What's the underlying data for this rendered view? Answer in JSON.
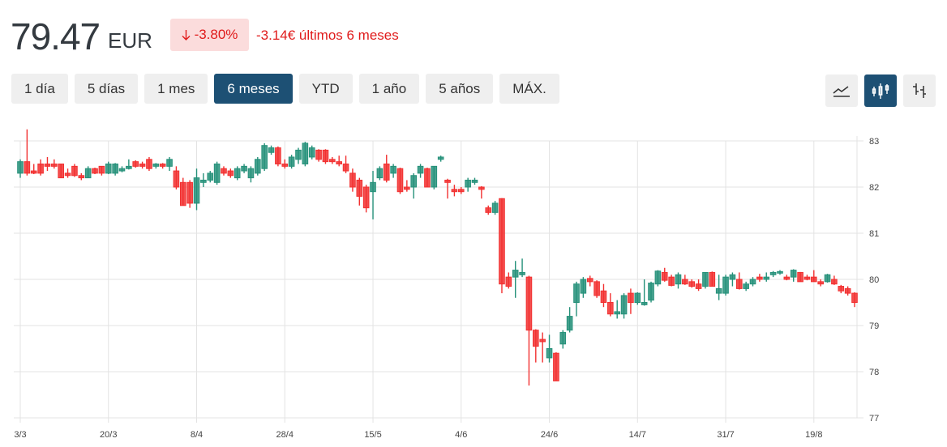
{
  "header": {
    "price": "79.47",
    "currency": "EUR",
    "change_pct": "-3.80%",
    "change_abs": "-3.14€ últimos 6 meses",
    "down_color": "#e01b1b"
  },
  "ranges": [
    {
      "label": "1 día",
      "active": false
    },
    {
      "label": "5 días",
      "active": false
    },
    {
      "label": "1 mes",
      "active": false
    },
    {
      "label": "6 meses",
      "active": true
    },
    {
      "label": "YTD",
      "active": false
    },
    {
      "label": "1 año",
      "active": false
    },
    {
      "label": "5 años",
      "active": false
    },
    {
      "label": "MÁX.",
      "active": false
    }
  ],
  "chart_types": [
    {
      "icon": "line-chart-icon",
      "active": false
    },
    {
      "icon": "candlestick-icon",
      "active": true
    },
    {
      "icon": "ohlc-bars-icon",
      "active": false
    }
  ],
  "chart_data": {
    "type": "candlestick",
    "ylim": [
      77,
      83
    ],
    "yticks": [
      77,
      78,
      79,
      80,
      81,
      82,
      83
    ],
    "grid": true,
    "up_color": "#26917a",
    "down_color": "#f23030",
    "xticks": [
      {
        "label": "3/3",
        "index": 0
      },
      {
        "label": "20/3",
        "index": 13
      },
      {
        "label": "8/4",
        "index": 26
      },
      {
        "label": "28/4",
        "index": 39
      },
      {
        "label": "15/5",
        "index": 52
      },
      {
        "label": "4/6",
        "index": 65
      },
      {
        "label": "24/6",
        "index": 78
      },
      {
        "label": "14/7",
        "index": 91
      },
      {
        "label": "31/7",
        "index": 104
      },
      {
        "label": "19/8",
        "index": 117
      }
    ],
    "ohlc": [
      [
        82.3,
        82.6,
        82.2,
        82.55
      ],
      [
        82.55,
        83.25,
        82.25,
        82.3
      ],
      [
        82.35,
        82.5,
        82.28,
        82.3
      ],
      [
        82.5,
        82.6,
        82.25,
        82.3
      ],
      [
        82.5,
        82.65,
        82.35,
        82.45
      ],
      [
        82.5,
        82.6,
        82.4,
        82.45
      ],
      [
        82.5,
        82.5,
        82.2,
        82.2
      ],
      [
        82.3,
        82.4,
        82.2,
        82.25
      ],
      [
        82.45,
        82.5,
        82.22,
        82.25
      ],
      [
        82.25,
        82.3,
        82.15,
        82.2
      ],
      [
        82.2,
        82.45,
        82.2,
        82.4
      ],
      [
        82.4,
        82.42,
        82.28,
        82.3
      ],
      [
        82.45,
        82.45,
        82.25,
        82.3
      ],
      [
        82.3,
        82.55,
        82.28,
        82.5
      ],
      [
        82.3,
        82.52,
        82.25,
        82.5
      ],
      [
        82.35,
        82.45,
        82.32,
        82.4
      ],
      [
        82.4,
        82.6,
        82.38,
        82.45
      ],
      [
        82.55,
        82.58,
        82.42,
        82.45
      ],
      [
        82.5,
        82.55,
        82.4,
        82.45
      ],
      [
        82.6,
        82.65,
        82.35,
        82.4
      ],
      [
        82.45,
        82.52,
        82.4,
        82.5
      ],
      [
        82.5,
        82.52,
        82.4,
        82.45
      ],
      [
        82.45,
        82.65,
        82.35,
        82.6
      ],
      [
        82.35,
        82.45,
        81.95,
        82.0
      ],
      [
        82.1,
        82.2,
        81.6,
        81.6
      ],
      [
        82.1,
        82.15,
        81.55,
        81.65
      ],
      [
        81.65,
        82.4,
        81.5,
        82.2
      ],
      [
        82.1,
        82.3,
        82.0,
        82.15
      ],
      [
        82.15,
        82.35,
        82.1,
        82.3
      ],
      [
        82.1,
        82.55,
        82.05,
        82.5
      ],
      [
        82.4,
        82.45,
        82.25,
        82.3
      ],
      [
        82.35,
        82.4,
        82.2,
        82.25
      ],
      [
        82.2,
        82.45,
        82.15,
        82.4
      ],
      [
        82.35,
        82.5,
        82.3,
        82.45
      ],
      [
        82.2,
        82.45,
        82.1,
        82.4
      ],
      [
        82.3,
        82.65,
        82.25,
        82.6
      ],
      [
        82.4,
        82.95,
        82.35,
        82.9
      ],
      [
        82.75,
        82.9,
        82.7,
        82.85
      ],
      [
        82.85,
        82.88,
        82.45,
        82.5
      ],
      [
        82.5,
        82.6,
        82.4,
        82.45
      ],
      [
        82.45,
        82.7,
        82.4,
        82.65
      ],
      [
        82.6,
        82.85,
        82.5,
        82.8
      ],
      [
        82.5,
        82.98,
        82.45,
        82.95
      ],
      [
        82.65,
        82.9,
        82.6,
        82.85
      ],
      [
        82.8,
        82.82,
        82.55,
        82.6
      ],
      [
        82.8,
        82.82,
        82.5,
        82.55
      ],
      [
        82.6,
        82.65,
        82.5,
        82.55
      ],
      [
        82.55,
        82.68,
        82.45,
        82.5
      ],
      [
        82.5,
        82.68,
        82.3,
        82.35
      ],
      [
        82.3,
        82.4,
        81.9,
        82.0
      ],
      [
        82.15,
        82.2,
        81.6,
        81.8
      ],
      [
        82.0,
        82.05,
        81.45,
        81.55
      ],
      [
        81.9,
        82.35,
        81.3,
        82.1
      ],
      [
        82.2,
        82.45,
        82.15,
        82.4
      ],
      [
        82.5,
        82.7,
        82.1,
        82.15
      ],
      [
        82.3,
        82.5,
        82.2,
        82.45
      ],
      [
        82.4,
        82.42,
        81.85,
        81.9
      ],
      [
        82.0,
        82.15,
        81.9,
        81.95
      ],
      [
        82.0,
        82.3,
        81.75,
        82.25
      ],
      [
        82.3,
        82.5,
        82.2,
        82.45
      ],
      [
        82.4,
        82.42,
        82.0,
        82.0
      ],
      [
        82.0,
        82.45,
        81.95,
        82.45
      ],
      [
        82.6,
        82.68,
        82.55,
        82.65
      ],
      [
        82.15,
        82.18,
        81.75,
        82.1
      ],
      [
        81.95,
        82.05,
        81.8,
        81.9
      ],
      [
        81.95,
        82.0,
        81.85,
        81.9
      ],
      [
        82.0,
        82.2,
        81.9,
        82.15
      ],
      [
        82.1,
        82.2,
        82.05,
        82.15
      ],
      [
        82.0,
        82.02,
        81.75,
        81.95
      ],
      [
        81.55,
        81.6,
        81.4,
        81.45
      ],
      [
        81.45,
        81.7,
        81.4,
        81.65
      ],
      [
        81.75,
        81.76,
        79.7,
        79.9
      ],
      [
        80.05,
        80.15,
        79.8,
        79.85
      ],
      [
        80.05,
        80.4,
        79.6,
        80.2
      ],
      [
        80.1,
        80.45,
        80.05,
        80.15
      ],
      [
        80.05,
        80.08,
        77.7,
        78.9
      ],
      [
        78.9,
        78.92,
        78.2,
        78.55
      ],
      [
        78.7,
        78.85,
        78.2,
        78.65
      ],
      [
        78.3,
        78.8,
        78.2,
        78.5
      ],
      [
        78.4,
        78.42,
        77.8,
        77.8
      ],
      [
        78.6,
        78.9,
        78.5,
        78.85
      ],
      [
        78.9,
        79.4,
        78.85,
        79.2
      ],
      [
        79.5,
        79.95,
        79.2,
        79.9
      ],
      [
        79.7,
        80.05,
        79.6,
        80.0
      ],
      [
        80.02,
        80.08,
        79.85,
        79.95
      ],
      [
        79.95,
        79.98,
        79.6,
        79.65
      ],
      [
        79.75,
        79.9,
        79.4,
        79.5
      ],
      [
        79.5,
        79.7,
        79.2,
        79.25
      ],
      [
        79.25,
        79.55,
        79.15,
        79.3
      ],
      [
        79.25,
        79.7,
        79.15,
        79.65
      ],
      [
        79.7,
        79.8,
        79.25,
        79.5
      ],
      [
        79.5,
        79.72,
        79.45,
        79.7
      ],
      [
        79.45,
        80.0,
        79.43,
        79.5
      ],
      [
        79.55,
        79.95,
        79.5,
        79.92
      ],
      [
        79.9,
        80.2,
        79.85,
        80.18
      ],
      [
        80.15,
        80.25,
        79.95,
        79.98
      ],
      [
        80.05,
        80.1,
        79.85,
        79.87
      ],
      [
        79.9,
        80.15,
        79.8,
        80.1
      ],
      [
        80.0,
        80.1,
        79.88,
        79.9
      ],
      [
        79.95,
        80.0,
        79.82,
        79.85
      ],
      [
        79.9,
        80.0,
        79.75,
        79.8
      ],
      [
        79.85,
        80.15,
        79.8,
        80.15
      ],
      [
        80.15,
        80.17,
        79.85,
        79.85
      ],
      [
        79.7,
        80.1,
        79.55,
        79.8
      ],
      [
        79.7,
        80.1,
        79.65,
        80.05
      ],
      [
        80.0,
        80.15,
        79.85,
        80.1
      ],
      [
        80.0,
        80.15,
        79.78,
        79.8
      ],
      [
        79.8,
        79.95,
        79.75,
        79.9
      ],
      [
        79.9,
        80.05,
        79.85,
        80.0
      ],
      [
        80.05,
        80.12,
        79.95,
        80.0
      ],
      [
        80.0,
        80.15,
        79.95,
        80.05
      ],
      [
        80.1,
        80.18,
        80.05,
        80.15
      ],
      [
        80.15,
        80.2,
        80.1,
        80.17
      ],
      [
        80.05,
        80.1,
        79.98,
        80.0
      ],
      [
        80.05,
        80.22,
        79.95,
        80.2
      ],
      [
        80.15,
        80.16,
        79.95,
        79.95
      ],
      [
        80.05,
        80.1,
        79.98,
        80.0
      ],
      [
        80.05,
        80.2,
        79.95,
        79.95
      ],
      [
        79.95,
        80.0,
        79.85,
        79.9
      ],
      [
        79.95,
        80.12,
        79.93,
        80.1
      ],
      [
        80.0,
        80.08,
        79.88,
        79.9
      ],
      [
        79.85,
        79.88,
        79.7,
        79.75
      ],
      [
        79.8,
        79.85,
        79.65,
        79.7
      ],
      [
        79.7,
        79.72,
        79.4,
        79.5
      ]
    ]
  }
}
